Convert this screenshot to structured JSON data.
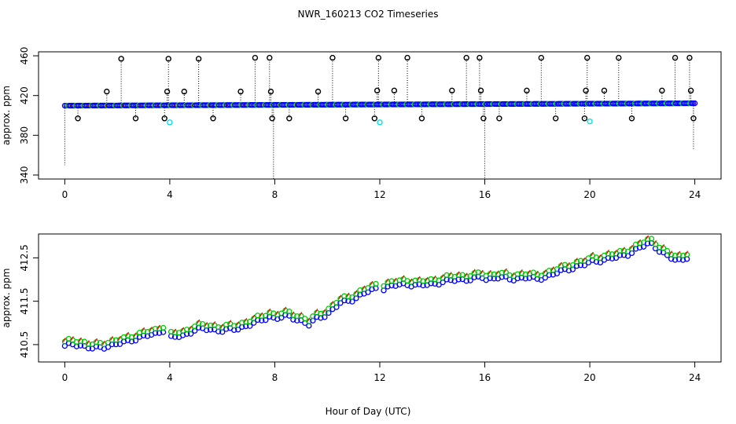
{
  "figure": {
    "title": "NWR_160213  CO2 Timeseries",
    "xlabel": "Hour of Day (UTC)"
  },
  "colors": {
    "black": "#000000",
    "blue": "#0000ff",
    "cyan": "#00e5ee",
    "green": "#00cc00",
    "red": "#ff0000"
  },
  "chart_data": [
    {
      "type": "scatter",
      "name": "top-panel",
      "ylabel": "approx. ppm",
      "xlim": [
        -1,
        25
      ],
      "ylim": [
        336,
        464
      ],
      "xticks": [
        0,
        4,
        8,
        12,
        16,
        20,
        24
      ],
      "yticks": [
        340,
        380,
        420,
        460
      ],
      "baseline": 411,
      "baseline_slope_per_hour": 0.1,
      "spikes_high": [
        {
          "x": 1.6,
          "y": 424
        },
        {
          "x": 2.15,
          "y": 457
        },
        {
          "x": 3.9,
          "y": 424
        },
        {
          "x": 3.95,
          "y": 457
        },
        {
          "x": 4.55,
          "y": 424
        },
        {
          "x": 5.1,
          "y": 457
        },
        {
          "x": 6.7,
          "y": 424
        },
        {
          "x": 7.25,
          "y": 458
        },
        {
          "x": 7.8,
          "y": 458
        },
        {
          "x": 7.85,
          "y": 424
        },
        {
          "x": 9.65,
          "y": 424
        },
        {
          "x": 10.2,
          "y": 458
        },
        {
          "x": 11.9,
          "y": 425
        },
        {
          "x": 11.95,
          "y": 458
        },
        {
          "x": 12.55,
          "y": 425
        },
        {
          "x": 13.05,
          "y": 458
        },
        {
          "x": 14.75,
          "y": 425
        },
        {
          "x": 15.3,
          "y": 458
        },
        {
          "x": 15.8,
          "y": 458
        },
        {
          "x": 15.85,
          "y": 425
        },
        {
          "x": 17.6,
          "y": 425
        },
        {
          "x": 18.15,
          "y": 458
        },
        {
          "x": 19.85,
          "y": 425
        },
        {
          "x": 19.9,
          "y": 458
        },
        {
          "x": 20.55,
          "y": 425
        },
        {
          "x": 21.1,
          "y": 458
        },
        {
          "x": 22.75,
          "y": 425
        },
        {
          "x": 23.25,
          "y": 458
        },
        {
          "x": 23.8,
          "y": 458
        },
        {
          "x": 23.85,
          "y": 425
        }
      ],
      "spikes_low": [
        {
          "x": 0.5,
          "y": 397
        },
        {
          "x": 2.7,
          "y": 397
        },
        {
          "x": 3.8,
          "y": 397
        },
        {
          "x": 5.65,
          "y": 397
        },
        {
          "x": 7.9,
          "y": 397
        },
        {
          "x": 8.55,
          "y": 397
        },
        {
          "x": 10.7,
          "y": 397
        },
        {
          "x": 11.8,
          "y": 397
        },
        {
          "x": 13.6,
          "y": 397
        },
        {
          "x": 15.95,
          "y": 397
        },
        {
          "x": 16.55,
          "y": 397
        },
        {
          "x": 18.7,
          "y": 397
        },
        {
          "x": 19.8,
          "y": 397
        },
        {
          "x": 21.6,
          "y": 397
        },
        {
          "x": 23.95,
          "y": 397
        }
      ],
      "cyan_points": [
        {
          "x": 4.0,
          "y": 393
        },
        {
          "x": 12.0,
          "y": 393
        },
        {
          "x": 20.0,
          "y": 394
        }
      ],
      "drops": [
        {
          "x": 0.0,
          "y": 350
        },
        {
          "x": 7.95,
          "y": 336
        },
        {
          "x": 16.0,
          "y": 336
        },
        {
          "x": 23.95,
          "y": 366
        }
      ]
    },
    {
      "type": "scatter",
      "name": "bottom-panel",
      "ylabel": "approx. ppm",
      "xlim": [
        -1,
        25
      ],
      "ylim": [
        410.1,
        413.05
      ],
      "xticks": [
        0,
        4,
        8,
        12,
        16,
        20,
        24
      ],
      "yticks": [
        410.5,
        411.5,
        412.5
      ],
      "series": [
        {
          "name": "blue",
          "offset": -0.1
        },
        {
          "name": "green",
          "offset": 0
        },
        {
          "name": "red",
          "offset": 0.03
        }
      ],
      "trend": {
        "x": [
          0,
          0.25,
          0.5,
          1.0,
          1.5,
          2.0,
          2.5,
          3.0,
          3.5,
          3.8,
          4.0,
          4.5,
          5.0,
          5.5,
          6.0,
          6.5,
          7.0,
          7.5,
          7.8,
          8.0,
          8.5,
          9.0,
          9.3,
          9.6,
          10.0,
          10.5,
          11.0,
          11.5,
          11.9,
          12.0,
          12.5,
          13.0,
          13.5,
          14.0,
          14.5,
          15.0,
          15.5,
          15.9,
          16.0,
          16.5,
          17.0,
          17.5,
          18.0,
          18.5,
          19.0,
          19.5,
          19.9,
          20.0,
          20.5,
          21.0,
          21.5,
          22.0,
          22.3,
          22.6,
          23.0,
          23.3,
          23.5,
          23.8
        ],
        "y": [
          410.55,
          410.62,
          410.6,
          410.5,
          410.55,
          410.6,
          410.7,
          410.78,
          410.85,
          410.95,
          410.75,
          410.8,
          410.95,
          410.95,
          410.92,
          410.95,
          411.05,
          411.15,
          411.25,
          411.2,
          411.25,
          411.15,
          411.05,
          411.2,
          411.3,
          411.55,
          411.65,
          411.8,
          411.9,
          411.85,
          411.95,
          412.0,
          411.95,
          412.0,
          412.05,
          412.1,
          412.1,
          412.15,
          412.1,
          412.15,
          412.1,
          412.15,
          412.1,
          412.2,
          412.3,
          412.4,
          412.45,
          412.5,
          412.55,
          412.6,
          412.7,
          412.85,
          412.95,
          412.8,
          412.6,
          412.55,
          412.55,
          412.65
        ]
      }
    }
  ]
}
